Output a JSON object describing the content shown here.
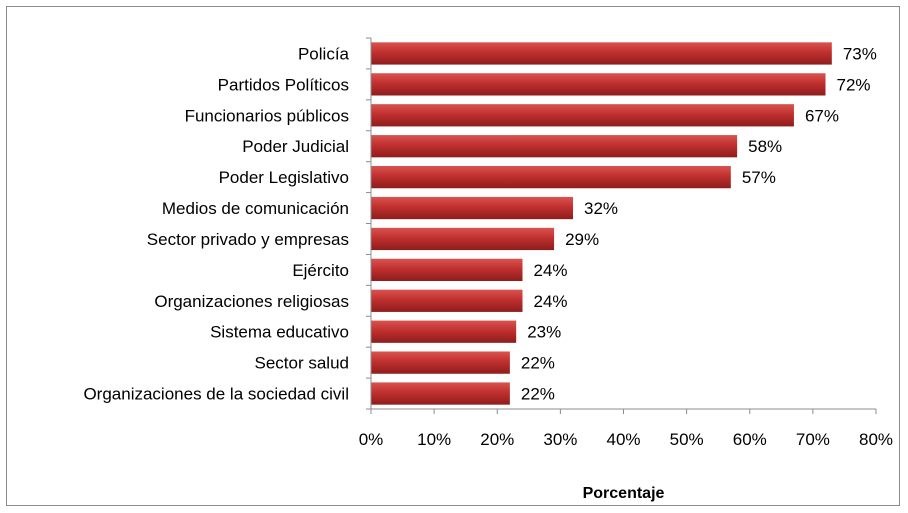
{
  "chart_data": {
    "type": "bar",
    "orientation": "horizontal",
    "categories": [
      "Policía",
      "Partidos Políticos",
      "Funcionarios públicos",
      "Poder Judicial",
      "Poder Legislativo",
      "Medios de comunicación",
      "Sector privado y empresas",
      "Ejército",
      "Organizaciones religiosas",
      "Sistema educativo",
      "Sector salud",
      "Organizaciones de la sociedad civil"
    ],
    "values": [
      73,
      72,
      67,
      58,
      57,
      32,
      29,
      24,
      24,
      23,
      22,
      22
    ],
    "value_labels": [
      "73%",
      "72%",
      "67%",
      "58%",
      "57%",
      "32%",
      "29%",
      "24%",
      "24%",
      "23%",
      "22%",
      "22%"
    ],
    "xlabel": "Porcentaje",
    "ylabel": "",
    "xlim": [
      0,
      80
    ],
    "x_ticks": [
      0,
      10,
      20,
      30,
      40,
      50,
      60,
      70,
      80
    ],
    "x_tick_labels": [
      "0%",
      "10%",
      "20%",
      "30%",
      "40%",
      "50%",
      "60%",
      "70%",
      "80%"
    ],
    "grid": false,
    "legend": "none",
    "bar_color": "#c0302f"
  }
}
